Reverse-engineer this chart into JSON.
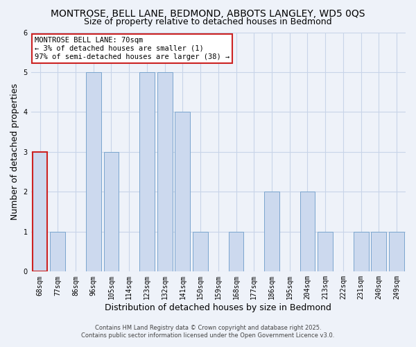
{
  "title": "MONTROSE, BELL LANE, BEDMOND, ABBOTS LANGLEY, WD5 0QS",
  "subtitle": "Size of property relative to detached houses in Bedmond",
  "xlabel": "Distribution of detached houses by size in Bedmond",
  "ylabel": "Number of detached properties",
  "categories": [
    "68sqm",
    "77sqm",
    "86sqm",
    "96sqm",
    "105sqm",
    "114sqm",
    "123sqm",
    "132sqm",
    "141sqm",
    "150sqm",
    "159sqm",
    "168sqm",
    "177sqm",
    "186sqm",
    "195sqm",
    "204sqm",
    "213sqm",
    "222sqm",
    "231sqm",
    "240sqm",
    "249sqm"
  ],
  "values": [
    3,
    1,
    0,
    5,
    3,
    0,
    5,
    5,
    4,
    1,
    0,
    1,
    0,
    2,
    0,
    2,
    1,
    0,
    1,
    1,
    1
  ],
  "bar_color": "#ccd9ee",
  "bar_edge_color": "#7aa5ce",
  "highlight_bar_edge_color": "#cc2222",
  "highlight_index": 0,
  "annotation_text": "MONTROSE BELL LANE: 70sqm\n← 3% of detached houses are smaller (1)\n97% of semi-detached houses are larger (38) →",
  "annotation_box_edge_color": "#cc2222",
  "ylim": [
    0,
    6
  ],
  "yticks": [
    0,
    1,
    2,
    3,
    4,
    5,
    6
  ],
  "grid_color": "#c8d4e8",
  "bg_color": "#eef2f9",
  "plot_bg_color": "#eef2f9",
  "footer1": "Contains HM Land Registry data © Crown copyright and database right 2025.",
  "footer2": "Contains public sector information licensed under the Open Government Licence v3.0.",
  "title_fontsize": 10,
  "subtitle_fontsize": 9,
  "tick_fontsize": 7,
  "label_fontsize": 9,
  "annot_fontsize": 7.5
}
